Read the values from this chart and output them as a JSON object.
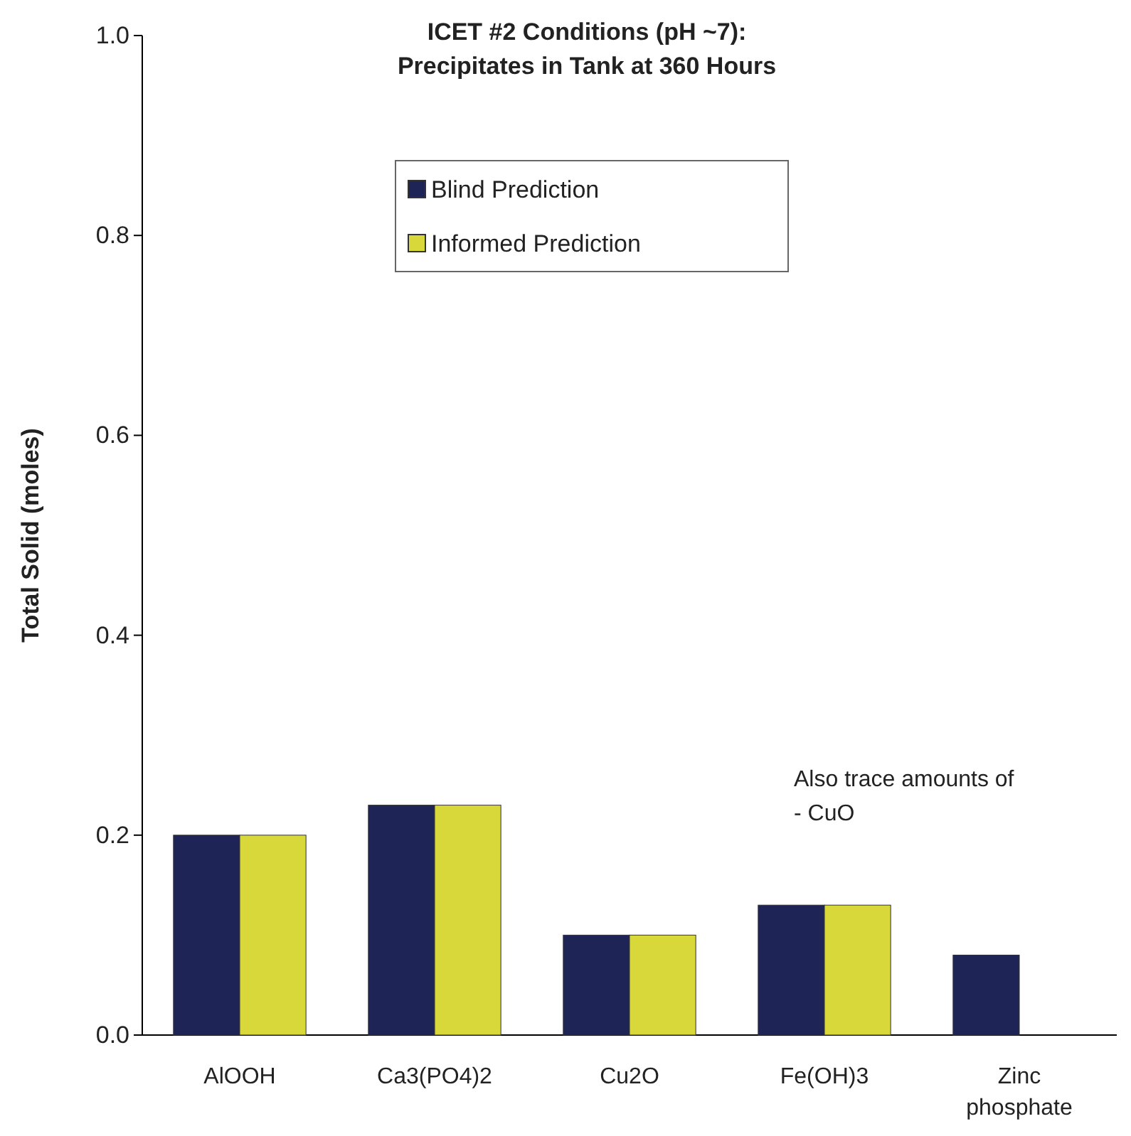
{
  "chart_data": {
    "type": "bar",
    "title": "ICET #2 Conditions (pH ~7):\nPrecipitates in Tank at 360 Hours",
    "ylabel": "Total Solid (moles)",
    "categories": [
      "AlOOH",
      "Ca3(PO4)2",
      "Cu2O",
      "Fe(OH)3",
      "Zinc phosphate"
    ],
    "series": [
      {
        "name": "Blind Prediction",
        "color": "#1f2456",
        "values": [
          0.2,
          0.23,
          0.1,
          0.13,
          0.08
        ]
      },
      {
        "name": "Informed Prediction",
        "color": "#d8d83a",
        "values": [
          0.2,
          0.23,
          0.1,
          0.13,
          null
        ]
      }
    ],
    "ylim": [
      0,
      1
    ],
    "yticks": [
      {
        "value": 0,
        "label": "0.0"
      },
      {
        "value": 0.2,
        "label": "0.2"
      },
      {
        "value": 0.4,
        "label": "0.4"
      },
      {
        "value": 0.6,
        "label": "0.6"
      },
      {
        "value": 0.8,
        "label": "0.8"
      },
      {
        "value": 1,
        "label": "1.0"
      }
    ],
    "grid": false,
    "legend": "top",
    "annotations": [
      "Also trace amounts of\n- CuO"
    ]
  }
}
